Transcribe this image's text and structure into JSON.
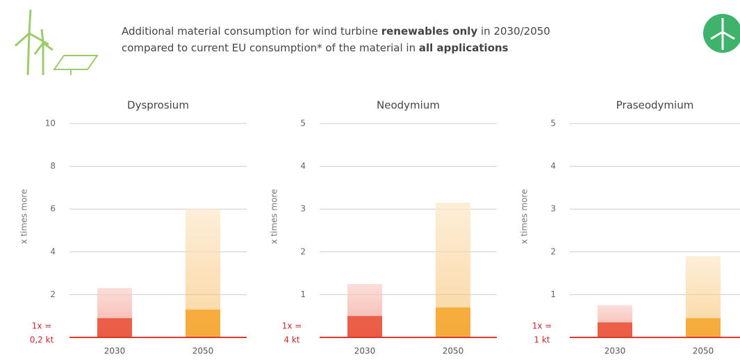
{
  "header": {
    "title_lines": [
      [
        {
          "text": "Additional material consumption for wind turbine ",
          "bold": false
        },
        {
          "text": "renewables only",
          "bold": true
        },
        {
          "text": " in 2030/2050",
          "bold": false
        }
      ],
      [
        {
          "text": "compared to current EU consumption* of the material in ",
          "bold": false
        },
        {
          "text": "all applications",
          "bold": true
        }
      ]
    ]
  },
  "chart_data": [
    {
      "type": "bar",
      "title": "Dysprosium",
      "ylabel": "x times more",
      "baseline_label": [
        "1x =",
        "0,2 kt"
      ],
      "categories": [
        "2030",
        "2050"
      ],
      "values": [
        2.3,
        6.0
      ],
      "base_values": [
        0.9,
        1.3
      ],
      "colors": [
        "#e94e35",
        "#f4a52a"
      ],
      "ylim": [
        0,
        10
      ],
      "yticks": [
        2,
        4,
        6,
        8,
        10
      ],
      "grid": true
    },
    {
      "type": "bar",
      "title": "Neodymium",
      "ylabel": "x times more",
      "baseline_label": [
        "1x =",
        "4 kt"
      ],
      "categories": [
        "2030",
        "2050"
      ],
      "values": [
        1.25,
        3.15
      ],
      "base_values": [
        0.5,
        0.7
      ],
      "colors": [
        "#e94e35",
        "#f4a52a"
      ],
      "ylim": [
        0,
        5
      ],
      "yticks": [
        1,
        2,
        3,
        4,
        5
      ],
      "grid": true
    },
    {
      "type": "bar",
      "title": "Praseodymium",
      "ylabel": "x times more",
      "baseline_label": [
        "1x =",
        "1 kt"
      ],
      "categories": [
        "2030",
        "2050"
      ],
      "values": [
        0.75,
        1.9
      ],
      "base_values": [
        0.35,
        0.45
      ],
      "colors": [
        "#e94e35",
        "#f4a52a"
      ],
      "ylim": [
        0,
        5
      ],
      "yticks": [
        1,
        2,
        3,
        4,
        5
      ],
      "grid": true
    }
  ]
}
